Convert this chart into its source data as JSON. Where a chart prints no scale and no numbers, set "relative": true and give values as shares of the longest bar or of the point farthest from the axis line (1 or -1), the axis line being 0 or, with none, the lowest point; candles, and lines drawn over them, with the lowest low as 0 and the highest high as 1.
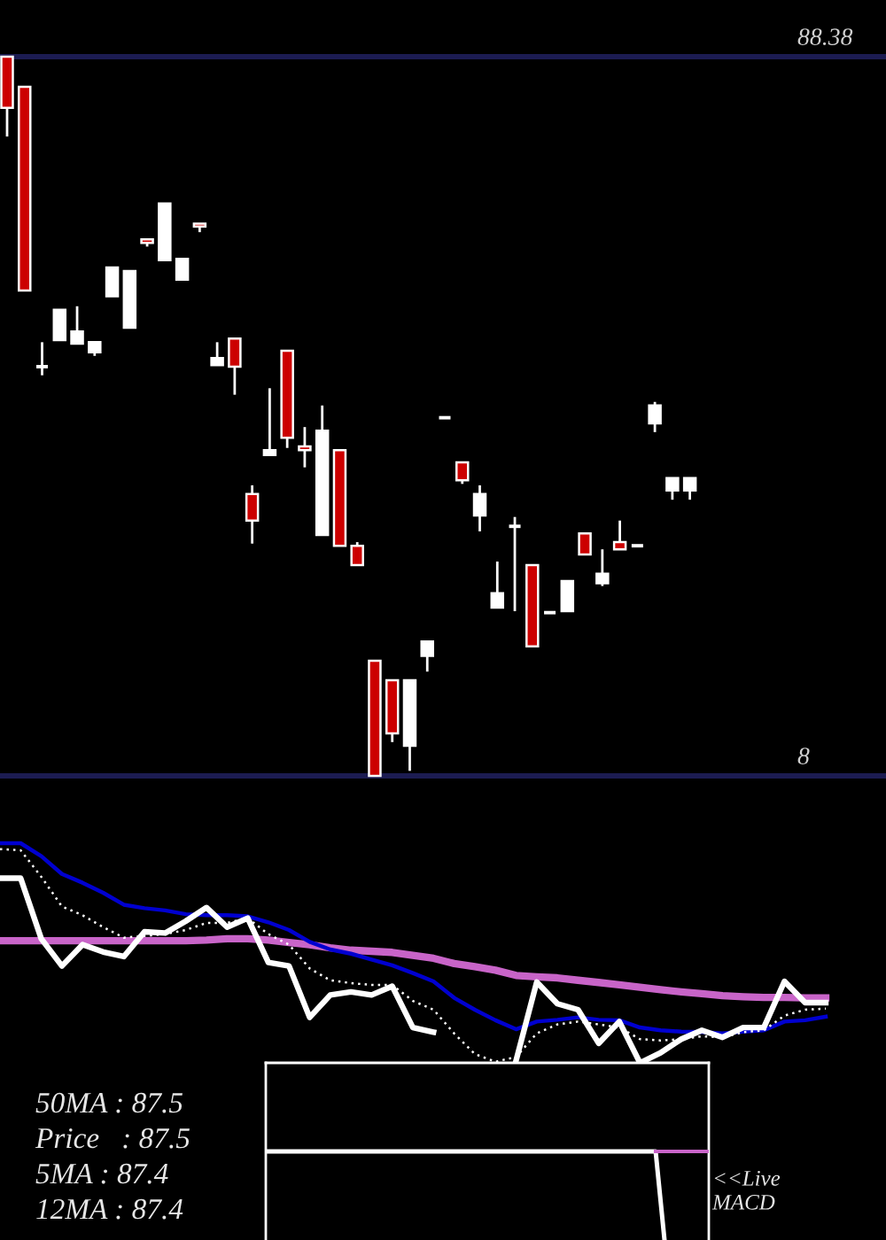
{
  "chart_data": [
    {
      "type": "candlestick",
      "relative": true,
      "categories": [
        null,
        null,
        null,
        null,
        null,
        null,
        null,
        null,
        null,
        null,
        null,
        null,
        null,
        null,
        null,
        null,
        null,
        null,
        null,
        null,
        null,
        null,
        null,
        null,
        null,
        null,
        null,
        null,
        null,
        null,
        null,
        null,
        null,
        null,
        null,
        null,
        null,
        null,
        null,
        null
      ],
      "ohlc": [
        [
          1.0,
          1.0,
          0.889,
          0.929
        ],
        [
          0.958,
          0.958,
          0.675,
          0.675
        ],
        [
          0.569,
          0.603,
          0.557,
          0.569
        ],
        [
          0.606,
          0.648,
          0.606,
          0.648
        ],
        [
          0.601,
          0.653,
          0.601,
          0.618
        ],
        [
          0.589,
          0.603,
          0.584,
          0.603
        ],
        [
          0.667,
          0.707,
          0.667,
          0.707
        ],
        [
          0.623,
          0.702,
          0.623,
          0.702
        ],
        [
          0.746,
          0.746,
          0.736,
          0.741
        ],
        [
          0.717,
          0.796,
          0.717,
          0.796
        ],
        [
          0.69,
          0.719,
          0.69,
          0.719
        ],
        [
          0.768,
          0.768,
          0.756,
          0.764
        ],
        [
          0.571,
          0.603,
          0.571,
          0.581
        ],
        [
          0.608,
          0.608,
          0.53,
          0.569
        ],
        [
          0.392,
          0.404,
          0.323,
          0.355
        ],
        [
          0.446,
          0.539,
          0.446,
          0.453
        ],
        [
          0.591,
          0.591,
          0.456,
          0.47
        ],
        [
          0.458,
          0.485,
          0.429,
          0.453
        ],
        [
          0.335,
          0.515,
          0.335,
          0.48
        ],
        [
          0.453,
          0.453,
          0.32,
          0.32
        ],
        [
          0.32,
          0.325,
          0.293,
          0.293
        ],
        [
          0.16,
          0.16,
          0.0,
          0.0
        ],
        [
          0.133,
          0.133,
          0.047,
          0.059
        ],
        [
          0.042,
          0.133,
          0.007,
          0.133
        ],
        [
          0.167,
          0.187,
          0.145,
          0.187
        ],
        [
          0.498,
          0.498,
          0.498,
          0.498
        ],
        [
          0.436,
          0.436,
          0.406,
          0.411
        ],
        [
          0.362,
          0.404,
          0.34,
          0.392
        ],
        [
          0.234,
          0.298,
          0.234,
          0.254
        ],
        [
          0.347,
          0.36,
          0.229,
          0.347
        ],
        [
          0.293,
          0.293,
          0.18,
          0.18
        ],
        [
          0.227,
          0.227,
          0.227,
          0.227
        ],
        [
          0.229,
          0.271,
          0.229,
          0.271
        ],
        [
          0.337,
          0.337,
          0.308,
          0.308
        ],
        [
          0.268,
          0.315,
          0.264,
          0.281
        ],
        [
          0.325,
          0.355,
          0.315,
          0.315
        ],
        [
          0.32,
          0.32,
          0.32,
          0.32
        ],
        [
          0.49,
          0.52,
          0.478,
          0.515
        ],
        [
          0.397,
          0.414,
          0.384,
          0.414
        ],
        [
          0.397,
          0.414,
          0.384,
          0.414
        ]
      ],
      "colors": [
        "#cc0000",
        "#cc0000",
        "#ffffff",
        "#ffffff",
        "#ffffff",
        "#ffffff",
        "#ffffff",
        "#ffffff",
        "#cc0000",
        "#ffffff",
        "#ffffff",
        "#cc0000",
        "#ffffff",
        "#cc0000",
        "#cc0000",
        "#ffffff",
        "#cc0000",
        "#cc0000",
        "#ffffff",
        "#cc0000",
        "#cc0000",
        "#cc0000",
        "#cc0000",
        "#ffffff",
        "#ffffff",
        "#ffffff",
        "#cc0000",
        "#ffffff",
        "#ffffff",
        "#ffffff",
        "#cc0000",
        "#ffffff",
        "#ffffff",
        "#cc0000",
        "#ffffff",
        "#cc0000",
        "#ffffff",
        "#ffffff",
        "#ffffff",
        "#ffffff"
      ],
      "ref_lines": [
        {
          "axis": "y",
          "value": 1,
          "color": "#1c1c52"
        },
        {
          "axis": "y",
          "value": 0,
          "color": "#1c1c52"
        }
      ],
      "annotations": [
        "88.38",
        "8"
      ]
    },
    {
      "type": "line",
      "relative": true,
      "categories": [
        null,
        null,
        null,
        null,
        null,
        null,
        null,
        null,
        null,
        null,
        null,
        null,
        null,
        null,
        null,
        null,
        null,
        null,
        null,
        null,
        null,
        null,
        null,
        null,
        null,
        null,
        null,
        null,
        null,
        null,
        null,
        null,
        null,
        null,
        null,
        null,
        null,
        null,
        null,
        null,
        null
      ],
      "series": [
        {
          "color": "#c864c8",
          "values": [
            0.556,
            0.556,
            0.556,
            0.556,
            0.556,
            0.556,
            0.556,
            0.556,
            0.556,
            0.556,
            0.559,
            0.565,
            0.565,
            0.559,
            0.548,
            0.538,
            0.524,
            0.513,
            0.508,
            0.503,
            0.489,
            0.476,
            0.452,
            0.438,
            0.422,
            0.398,
            0.392,
            0.387,
            0.376,
            0.366,
            0.355,
            0.344,
            0.333,
            0.323,
            0.315,
            0.306,
            0.301,
            0.298,
            0.298,
            0.296,
            0.296
          ]
        },
        {
          "color": "#0000d0",
          "values": [
            1.0,
            1.0,
            0.941,
            0.86,
            0.82,
            0.774,
            0.72,
            0.704,
            0.694,
            0.677,
            0.672,
            0.672,
            0.667,
            0.64,
            0.605,
            0.551,
            0.516,
            0.497,
            0.47,
            0.444,
            0.409,
            0.371,
            0.296,
            0.242,
            0.194,
            0.153,
            0.188,
            0.196,
            0.207,
            0.196,
            0.194,
            0.161,
            0.148,
            0.142,
            0.14,
            0.134,
            0.142,
            0.148,
            0.188,
            0.194,
            0.21
          ]
        },
        {
          "color": "#ffffff",
          "line_style": "dotted",
          "values": [
            0.973,
            0.968,
            0.847,
            0.712,
            0.672,
            0.618,
            0.57,
            0.578,
            0.586,
            0.605,
            0.637,
            0.637,
            0.659,
            0.586,
            0.538,
            0.43,
            0.376,
            0.363,
            0.355,
            0.355,
            0.282,
            0.242,
            0.134,
            0.04,
            0.005,
            0.027,
            0.134,
            0.175,
            0.188,
            0.175,
            0.161,
            0.108,
            0.102,
            0.108,
            0.121,
            0.116,
            0.14,
            0.148,
            0.215,
            0.242,
            0.247
          ]
        },
        {
          "color": "#ffffff",
          "values": [
            0.841,
            0.841,
            0.565,
            0.441,
            0.538,
            0.505,
            0.484,
            0.597,
            0.591,
            0.645,
            0.707,
            0.618,
            0.659,
            0.457,
            0.441,
            0.207,
            0.309,
            0.323,
            0.309,
            0.349,
            0.161,
            0.14,
            null,
            null,
            null,
            0.011,
            0.368,
            0.269,
            0.242,
            0.089,
            0.188,
            0.0,
            0.046,
            0.108,
            0.148,
            0.116,
            0.161,
            0.161,
            0.371,
            0.274,
            0.274
          ]
        }
      ],
      "annotations": [
        "50MA : 87.5",
        "Price   : 87.5",
        "5MA : 87.4",
        "12MA : 87.4"
      ]
    },
    {
      "type": "line",
      "relative": true,
      "categories": [
        null,
        null,
        null,
        null,
        null,
        null,
        null,
        null,
        null,
        null,
        null,
        null,
        null,
        null,
        null,
        null,
        null,
        null,
        null,
        null,
        null,
        null,
        null,
        null,
        null,
        null,
        null,
        null,
        null,
        null,
        null,
        null,
        null,
        null,
        null,
        null,
        null,
        null,
        null,
        null,
        null,
        null,
        null,
        null,
        null,
        null,
        null,
        null,
        null,
        null,
        null
      ],
      "series": [
        {
          "color": "#ffffff",
          "values": [
            1,
            1,
            1,
            1,
            1,
            1,
            1,
            1,
            1,
            1,
            1,
            1,
            1,
            1,
            1,
            1,
            1,
            1,
            1,
            1,
            1,
            1,
            1,
            1,
            1,
            1,
            1,
            1,
            1,
            1,
            1,
            1,
            1,
            1,
            1,
            1,
            1,
            1,
            1,
            1,
            1,
            1,
            1,
            1,
            1,
            0,
            null,
            null,
            null,
            null,
            null
          ]
        },
        {
          "color": "#c864c8",
          "values": [
            null,
            null,
            null,
            null,
            null,
            null,
            null,
            null,
            null,
            null,
            null,
            null,
            null,
            null,
            null,
            null,
            null,
            null,
            null,
            null,
            null,
            null,
            null,
            null,
            null,
            null,
            null,
            null,
            null,
            null,
            null,
            null,
            null,
            null,
            null,
            null,
            null,
            null,
            null,
            null,
            null,
            null,
            null,
            null,
            1,
            1,
            1,
            1,
            1,
            1,
            1
          ]
        }
      ],
      "annotations": [
        "<<Live\nMACD"
      ]
    }
  ]
}
